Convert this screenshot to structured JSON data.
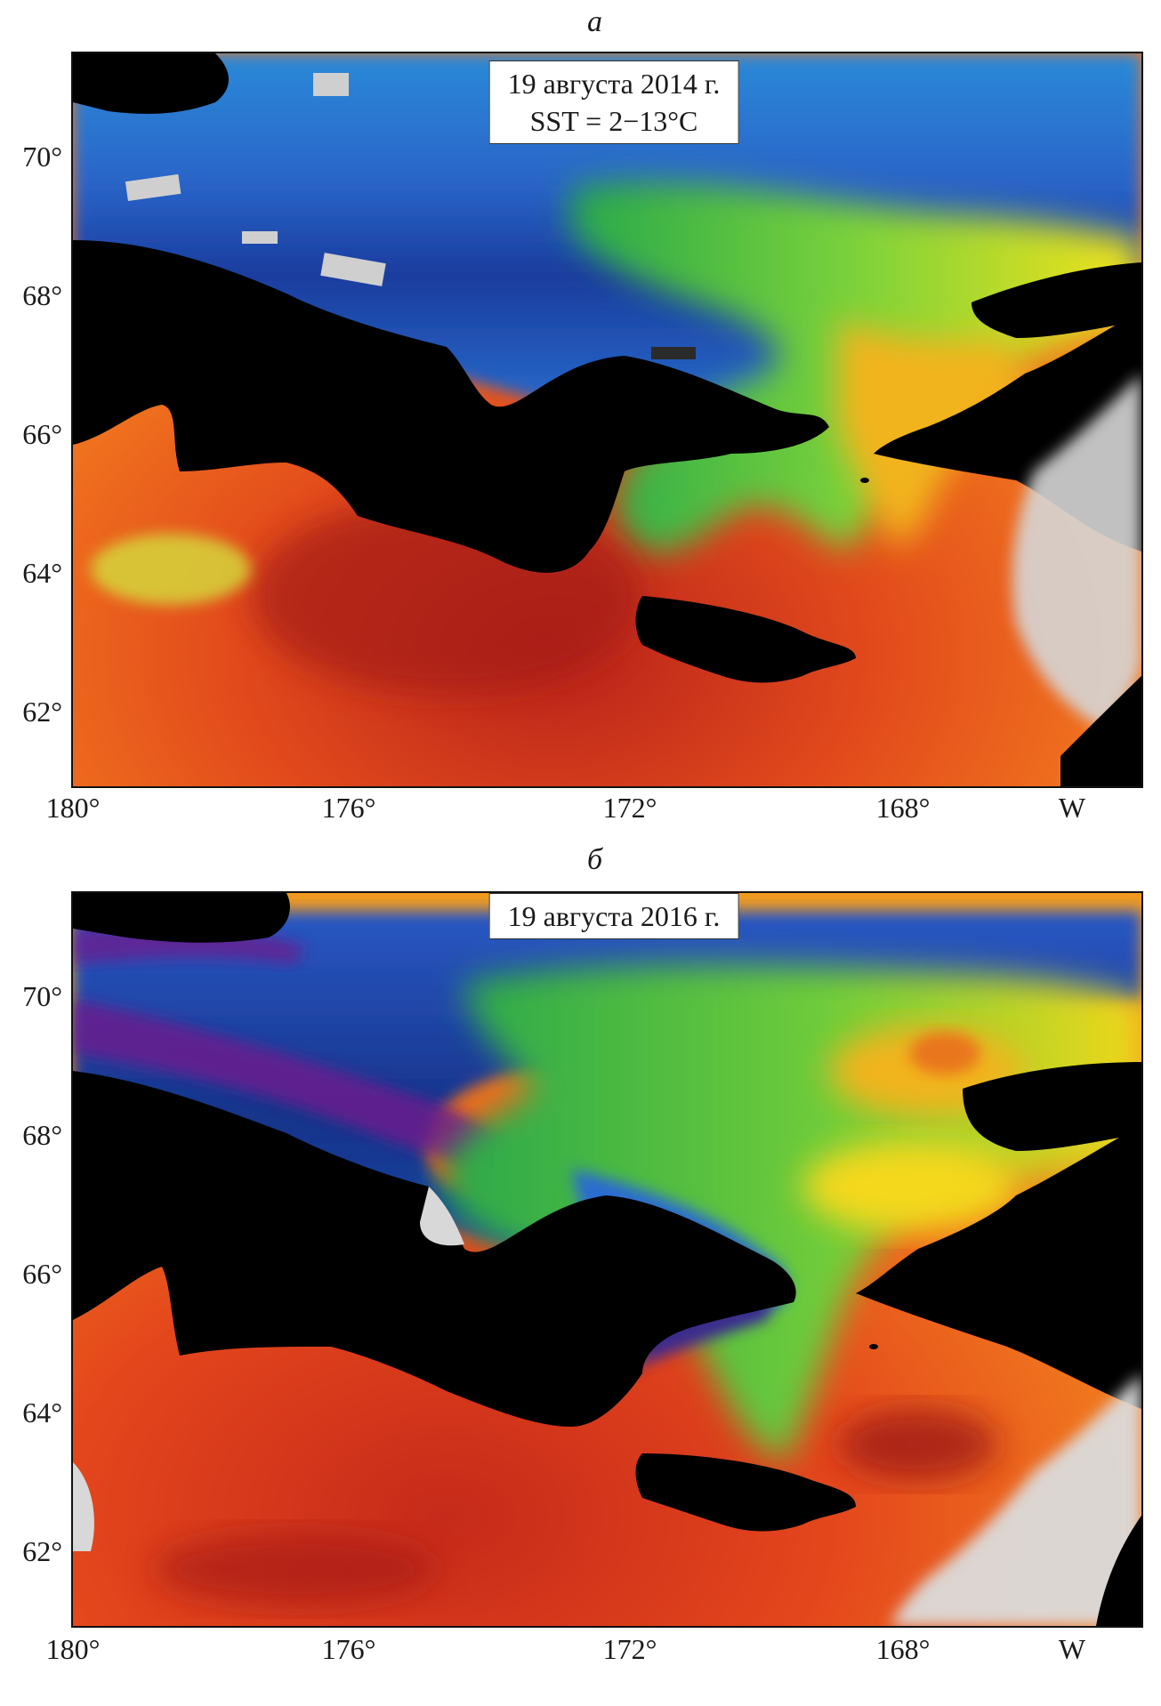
{
  "panels": [
    {
      "letter": "а",
      "date": "19 августа 2014 г.",
      "range": "SST = 2−13°C",
      "lat_ticks": [
        "70°",
        "68°",
        "66°",
        "64°",
        "62°"
      ],
      "lon_ticks": [
        "180°",
        "176°",
        "172°",
        "168°",
        "W"
      ]
    },
    {
      "letter": "б",
      "date": "19 августа 2016 г.",
      "range": "",
      "lat_ticks": [
        "70°",
        "68°",
        "66°",
        "64°",
        "62°"
      ],
      "lon_ticks": [
        "180°",
        "176°",
        "172°",
        "168°",
        "W"
      ]
    }
  ],
  "colors": {
    "cold": "#5b1a8c",
    "cool": "#1d5bd6",
    "mid": "#19b34a",
    "warm": "#f4e21b",
    "hot": "#e8421c",
    "hottest": "#9c1212",
    "land": "#000000",
    "ice_cloud": "#d9d9d9"
  }
}
